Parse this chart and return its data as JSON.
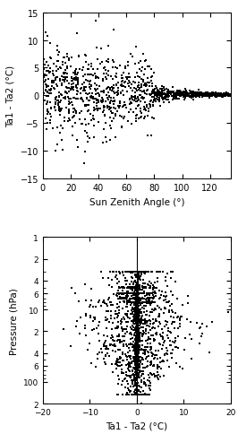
{
  "top_plot": {
    "xlabel": "Sun Zenith Angle (°)",
    "ylabel": "Ta1 - Ta2 (°C)",
    "xlim": [
      0,
      135
    ],
    "ylim": [
      -15,
      15
    ],
    "xticks": [
      0,
      20,
      40,
      60,
      80,
      100,
      120
    ],
    "yticks": [
      -15,
      -10,
      -5,
      0,
      5,
      10,
      15
    ],
    "scatter_color": "black",
    "marker_size": 3,
    "seed": 42,
    "n_points": 1200
  },
  "bottom_plot": {
    "xlabel": "Ta1 - Ta2 (°C)",
    "ylabel": "Pressure (hPa)",
    "xlim": [
      -20,
      20
    ],
    "ylim_log_min": 1,
    "ylim_log_max": 200,
    "xticks": [
      -20,
      -10,
      0,
      10,
      20
    ],
    "scatter_color": "black",
    "marker_size": 3,
    "seed": 99,
    "n_points": 1500,
    "vline_x": 0
  },
  "figure": {
    "bg_color": "white",
    "text_color": "black"
  }
}
